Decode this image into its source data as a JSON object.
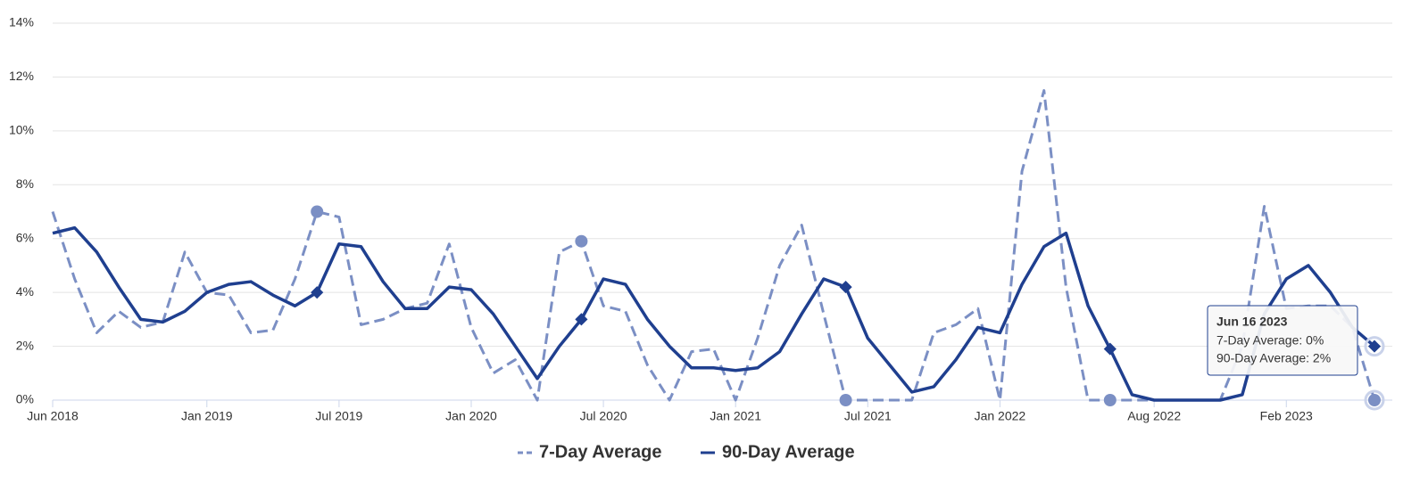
{
  "chart_data": {
    "type": "line",
    "x": [
      "2018-06",
      "2018-07",
      "2018-08",
      "2018-09",
      "2018-10",
      "2018-11",
      "2018-12",
      "2019-01",
      "2019-02",
      "2019-03",
      "2019-04",
      "2019-05",
      "2019-06",
      "2019-07",
      "2019-08",
      "2019-09",
      "2019-10",
      "2019-11",
      "2019-12",
      "2020-01",
      "2020-02",
      "2020-03",
      "2020-04",
      "2020-05",
      "2020-06",
      "2020-07",
      "2020-08",
      "2020-09",
      "2020-10",
      "2020-11",
      "2020-12",
      "2021-01",
      "2021-02",
      "2021-03",
      "2021-04",
      "2021-05",
      "2021-06",
      "2021-07",
      "2021-08",
      "2021-09",
      "2021-10",
      "2021-11",
      "2021-12",
      "2022-01",
      "2022-02",
      "2022-03",
      "2022-04",
      "2022-05",
      "2022-06",
      "2022-07",
      "2022-08",
      "2022-09",
      "2022-10",
      "2022-11",
      "2022-12",
      "2023-01",
      "2023-02",
      "2023-03",
      "2023-04",
      "2023-05",
      "2023-06"
    ],
    "series": [
      {
        "name": "7-Day Average",
        "color": "#7b8fc4",
        "dash": true,
        "values": [
          7.0,
          4.5,
          2.5,
          3.3,
          2.7,
          2.9,
          5.5,
          4.0,
          3.9,
          2.5,
          2.6,
          4.5,
          7.0,
          6.8,
          2.8,
          3.0,
          3.4,
          3.6,
          5.8,
          2.7,
          1.0,
          1.5,
          0,
          5.5,
          5.9,
          3.5,
          3.3,
          1.3,
          0,
          1.8,
          1.9,
          0,
          2.3,
          5.0,
          6.5,
          3.2,
          0,
          0,
          0,
          0,
          2.5,
          2.8,
          3.4,
          0,
          8.5,
          11.5,
          4.2,
          0,
          0,
          0,
          0,
          0,
          0,
          0,
          2.0,
          7.2,
          3.4,
          3.5,
          3.5,
          2.7,
          0
        ]
      },
      {
        "name": "90-Day Average",
        "color": "#1f3f8f",
        "dash": false,
        "values": [
          6.2,
          6.4,
          5.5,
          4.2,
          3.0,
          2.9,
          3.3,
          4.0,
          4.3,
          4.4,
          3.9,
          3.5,
          4.0,
          5.8,
          5.7,
          4.4,
          3.4,
          3.4,
          4.2,
          4.1,
          3.2,
          2.0,
          0.8,
          2.0,
          3.0,
          4.5,
          4.3,
          3.0,
          2.0,
          1.2,
          1.2,
          1.1,
          1.2,
          1.8,
          3.2,
          4.5,
          4.2,
          2.3,
          1.3,
          0.3,
          0.5,
          1.5,
          2.7,
          2.5,
          4.3,
          5.7,
          6.2,
          3.5,
          1.9,
          0.2,
          0,
          0,
          0,
          0,
          0.2,
          3.2,
          4.5,
          5.0,
          4.0,
          2.7,
          2.0
        ]
      }
    ],
    "ylim": [
      0,
      14
    ],
    "yticks": [
      {
        "value": 0,
        "label": "0%"
      },
      {
        "value": 2,
        "label": "2%"
      },
      {
        "value": 4,
        "label": "4%"
      },
      {
        "value": 6,
        "label": "6%"
      },
      {
        "value": 8,
        "label": "8%"
      },
      {
        "value": 10,
        "label": "10%"
      },
      {
        "value": 12,
        "label": "12%"
      },
      {
        "value": 14,
        "label": "14%"
      }
    ],
    "xticks": [
      {
        "value": "2018-06",
        "label": "Jun 2018"
      },
      {
        "value": "2019-01",
        "label": "Jan 2019"
      },
      {
        "value": "2019-07",
        "label": "Jul 2019"
      },
      {
        "value": "2020-01",
        "label": "Jan 2020"
      },
      {
        "value": "2020-07",
        "label": "Jul 2020"
      },
      {
        "value": "2021-01",
        "label": "Jan 2021"
      },
      {
        "value": "2021-07",
        "label": "Jul 2021"
      },
      {
        "value": "2022-01",
        "label": "Jan 2022"
      },
      {
        "value": "2022-08",
        "label": "Aug 2022"
      },
      {
        "value": "2023-02",
        "label": "Feb 2023"
      }
    ],
    "grid": true,
    "legend": "bottom",
    "tooltip": {
      "title": "Jun 16 2023",
      "lines": [
        "7-Day Average: 0%",
        "90-Day Average: 2%"
      ]
    }
  }
}
